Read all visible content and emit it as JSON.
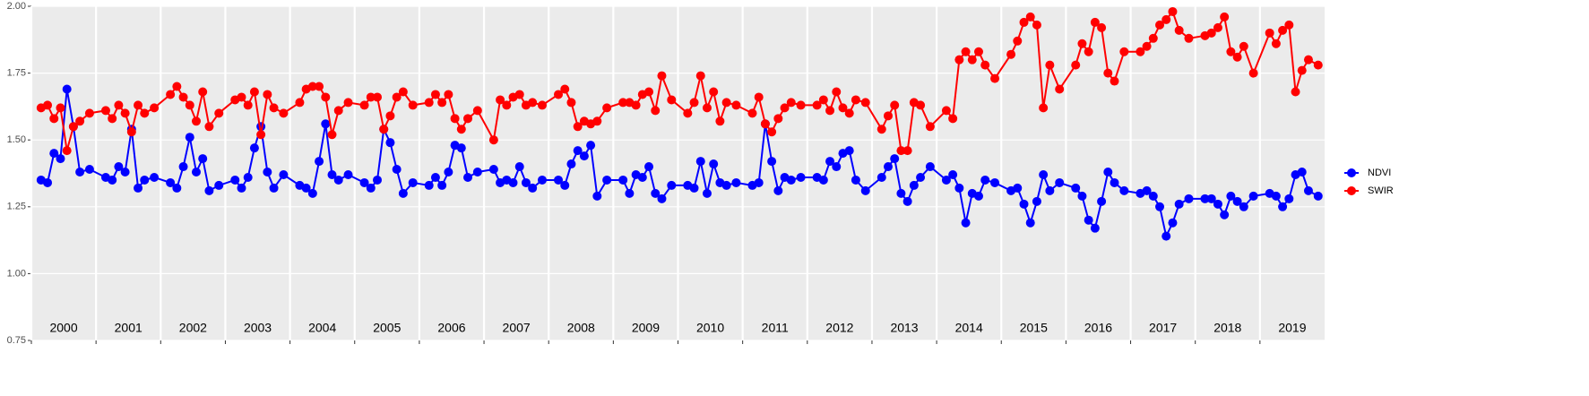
{
  "chart_data": {
    "type": "line",
    "x": [
      2000.15,
      2000.25,
      2000.35,
      2000.45,
      2000.55,
      2000.65,
      2000.75,
      2000.9,
      2001.15,
      2001.25,
      2001.35,
      2001.45,
      2001.55,
      2001.65,
      2001.75,
      2001.9,
      2002.15,
      2002.25,
      2002.35,
      2002.45,
      2002.55,
      2002.65,
      2002.75,
      2002.9,
      2003.15,
      2003.25,
      2003.35,
      2003.45,
      2003.55,
      2003.65,
      2003.75,
      2003.9,
      2004.15,
      2004.25,
      2004.35,
      2004.45,
      2004.55,
      2004.65,
      2004.75,
      2004.9,
      2005.15,
      2005.25,
      2005.35,
      2005.45,
      2005.55,
      2005.65,
      2005.75,
      2005.9,
      2006.15,
      2006.25,
      2006.35,
      2006.45,
      2006.55,
      2006.65,
      2006.75,
      2006.9,
      2007.15,
      2007.25,
      2007.35,
      2007.45,
      2007.55,
      2007.65,
      2007.75,
      2007.9,
      2008.15,
      2008.25,
      2008.35,
      2008.45,
      2008.55,
      2008.65,
      2008.75,
      2008.9,
      2009.15,
      2009.25,
      2009.35,
      2009.45,
      2009.55,
      2009.65,
      2009.75,
      2009.9,
      2010.15,
      2010.25,
      2010.35,
      2010.45,
      2010.55,
      2010.65,
      2010.75,
      2010.9,
      2011.15,
      2011.25,
      2011.35,
      2011.45,
      2011.55,
      2011.65,
      2011.75,
      2011.9,
      2012.15,
      2012.25,
      2012.35,
      2012.45,
      2012.55,
      2012.65,
      2012.75,
      2012.9,
      2013.15,
      2013.25,
      2013.35,
      2013.45,
      2013.55,
      2013.65,
      2013.75,
      2013.9,
      2014.15,
      2014.25,
      2014.35,
      2014.45,
      2014.55,
      2014.65,
      2014.75,
      2014.9,
      2015.15,
      2015.25,
      2015.35,
      2015.45,
      2015.55,
      2015.65,
      2015.75,
      2015.9,
      2016.15,
      2016.25,
      2016.35,
      2016.45,
      2016.55,
      2016.65,
      2016.75,
      2016.9,
      2017.15,
      2017.25,
      2017.35,
      2017.45,
      2017.55,
      2017.65,
      2017.75,
      2017.9,
      2018.15,
      2018.25,
      2018.35,
      2018.45,
      2018.55,
      2018.65,
      2018.75,
      2018.9,
      2019.15,
      2019.25,
      2019.35,
      2019.45,
      2019.55,
      2019.65,
      2019.75,
      2019.9
    ],
    "series": [
      {
        "name": "NDVI",
        "color": "#0000ff",
        "values": [
          1.35,
          1.34,
          1.45,
          1.43,
          1.69,
          1.55,
          1.38,
          1.39,
          1.36,
          1.35,
          1.4,
          1.38,
          1.54,
          1.32,
          1.35,
          1.36,
          1.34,
          1.32,
          1.4,
          1.51,
          1.38,
          1.43,
          1.31,
          1.33,
          1.35,
          1.32,
          1.36,
          1.47,
          1.55,
          1.38,
          1.32,
          1.37,
          1.33,
          1.32,
          1.3,
          1.42,
          1.56,
          1.37,
          1.35,
          1.37,
          1.34,
          1.32,
          1.35,
          1.54,
          1.49,
          1.39,
          1.3,
          1.34,
          1.33,
          1.36,
          1.33,
          1.38,
          1.48,
          1.47,
          1.36,
          1.38,
          1.39,
          1.34,
          1.35,
          1.34,
          1.4,
          1.34,
          1.32,
          1.35,
          1.35,
          1.33,
          1.41,
          1.46,
          1.44,
          1.48,
          1.29,
          1.35,
          1.35,
          1.3,
          1.37,
          1.36,
          1.4,
          1.3,
          1.28,
          1.33,
          1.33,
          1.32,
          1.42,
          1.3,
          1.41,
          1.34,
          1.33,
          1.34,
          1.33,
          1.34,
          1.56,
          1.42,
          1.31,
          1.36,
          1.35,
          1.36,
          1.36,
          1.35,
          1.42,
          1.4,
          1.45,
          1.46,
          1.35,
          1.31,
          1.36,
          1.4,
          1.43,
          1.3,
          1.27,
          1.33,
          1.36,
          1.4,
          1.35,
          1.37,
          1.32,
          1.19,
          1.3,
          1.29,
          1.35,
          1.34,
          1.31,
          1.32,
          1.26,
          1.19,
          1.27,
          1.37,
          1.31,
          1.34,
          1.32,
          1.29,
          1.2,
          1.17,
          1.27,
          1.38,
          1.34,
          1.31,
          1.3,
          1.31,
          1.29,
          1.25,
          1.14,
          1.19,
          1.26,
          1.28,
          1.28,
          1.28,
          1.26,
          1.22,
          1.29,
          1.27,
          1.25,
          1.29,
          1.3,
          1.29,
          1.25,
          1.28,
          1.37,
          1.38,
          1.31,
          1.29
        ]
      },
      {
        "name": "SWIR",
        "color": "#ff0000",
        "values": [
          1.62,
          1.63,
          1.58,
          1.62,
          1.46,
          1.55,
          1.57,
          1.6,
          1.61,
          1.58,
          1.63,
          1.6,
          1.53,
          1.63,
          1.6,
          1.62,
          1.67,
          1.7,
          1.66,
          1.63,
          1.57,
          1.68,
          1.55,
          1.6,
          1.65,
          1.66,
          1.63,
          1.68,
          1.52,
          1.67,
          1.62,
          1.6,
          1.64,
          1.69,
          1.7,
          1.7,
          1.66,
          1.52,
          1.61,
          1.64,
          1.63,
          1.66,
          1.66,
          1.54,
          1.59,
          1.66,
          1.68,
          1.63,
          1.64,
          1.67,
          1.64,
          1.67,
          1.58,
          1.54,
          1.58,
          1.61,
          1.5,
          1.65,
          1.63,
          1.66,
          1.67,
          1.63,
          1.64,
          1.63,
          1.67,
          1.69,
          1.64,
          1.55,
          1.57,
          1.56,
          1.57,
          1.62,
          1.64,
          1.64,
          1.63,
          1.67,
          1.68,
          1.61,
          1.74,
          1.65,
          1.6,
          1.64,
          1.74,
          1.62,
          1.68,
          1.57,
          1.64,
          1.63,
          1.6,
          1.66,
          1.56,
          1.53,
          1.58,
          1.62,
          1.64,
          1.63,
          1.63,
          1.65,
          1.61,
          1.68,
          1.62,
          1.6,
          1.65,
          1.64,
          1.54,
          1.59,
          1.63,
          1.46,
          1.46,
          1.64,
          1.63,
          1.55,
          1.61,
          1.58,
          1.8,
          1.83,
          1.8,
          1.83,
          1.78,
          1.73,
          1.82,
          1.87,
          1.94,
          1.96,
          1.93,
          1.62,
          1.78,
          1.69,
          1.78,
          1.86,
          1.83,
          1.94,
          1.92,
          1.75,
          1.72,
          1.83,
          1.83,
          1.85,
          1.88,
          1.93,
          1.95,
          1.98,
          1.91,
          1.88,
          1.89,
          1.9,
          1.92,
          1.96,
          1.83,
          1.81,
          1.85,
          1.75,
          1.9,
          1.86,
          1.91,
          1.93,
          1.68,
          1.76,
          1.8,
          1.78
        ]
      }
    ],
    "xlim": [
      2000,
      2020
    ],
    "xticks": [
      2000,
      2001,
      2002,
      2003,
      2004,
      2005,
      2006,
      2007,
      2008,
      2009,
      2010,
      2011,
      2012,
      2013,
      2014,
      2015,
      2016,
      2017,
      2018,
      2019
    ],
    "ylim": [
      0.75,
      2.0
    ],
    "yticks": [
      {
        "value": 0.75,
        "label": "0.75"
      },
      {
        "value": 1,
        "label": "1.00"
      },
      {
        "value": 1.25,
        "label": "1.25"
      },
      {
        "value": 1.5,
        "label": "1.50"
      },
      {
        "value": 1.75,
        "label": "1.75"
      },
      {
        "value": 2,
        "label": "2.00"
      }
    ],
    "grid": true,
    "legend": "right"
  }
}
